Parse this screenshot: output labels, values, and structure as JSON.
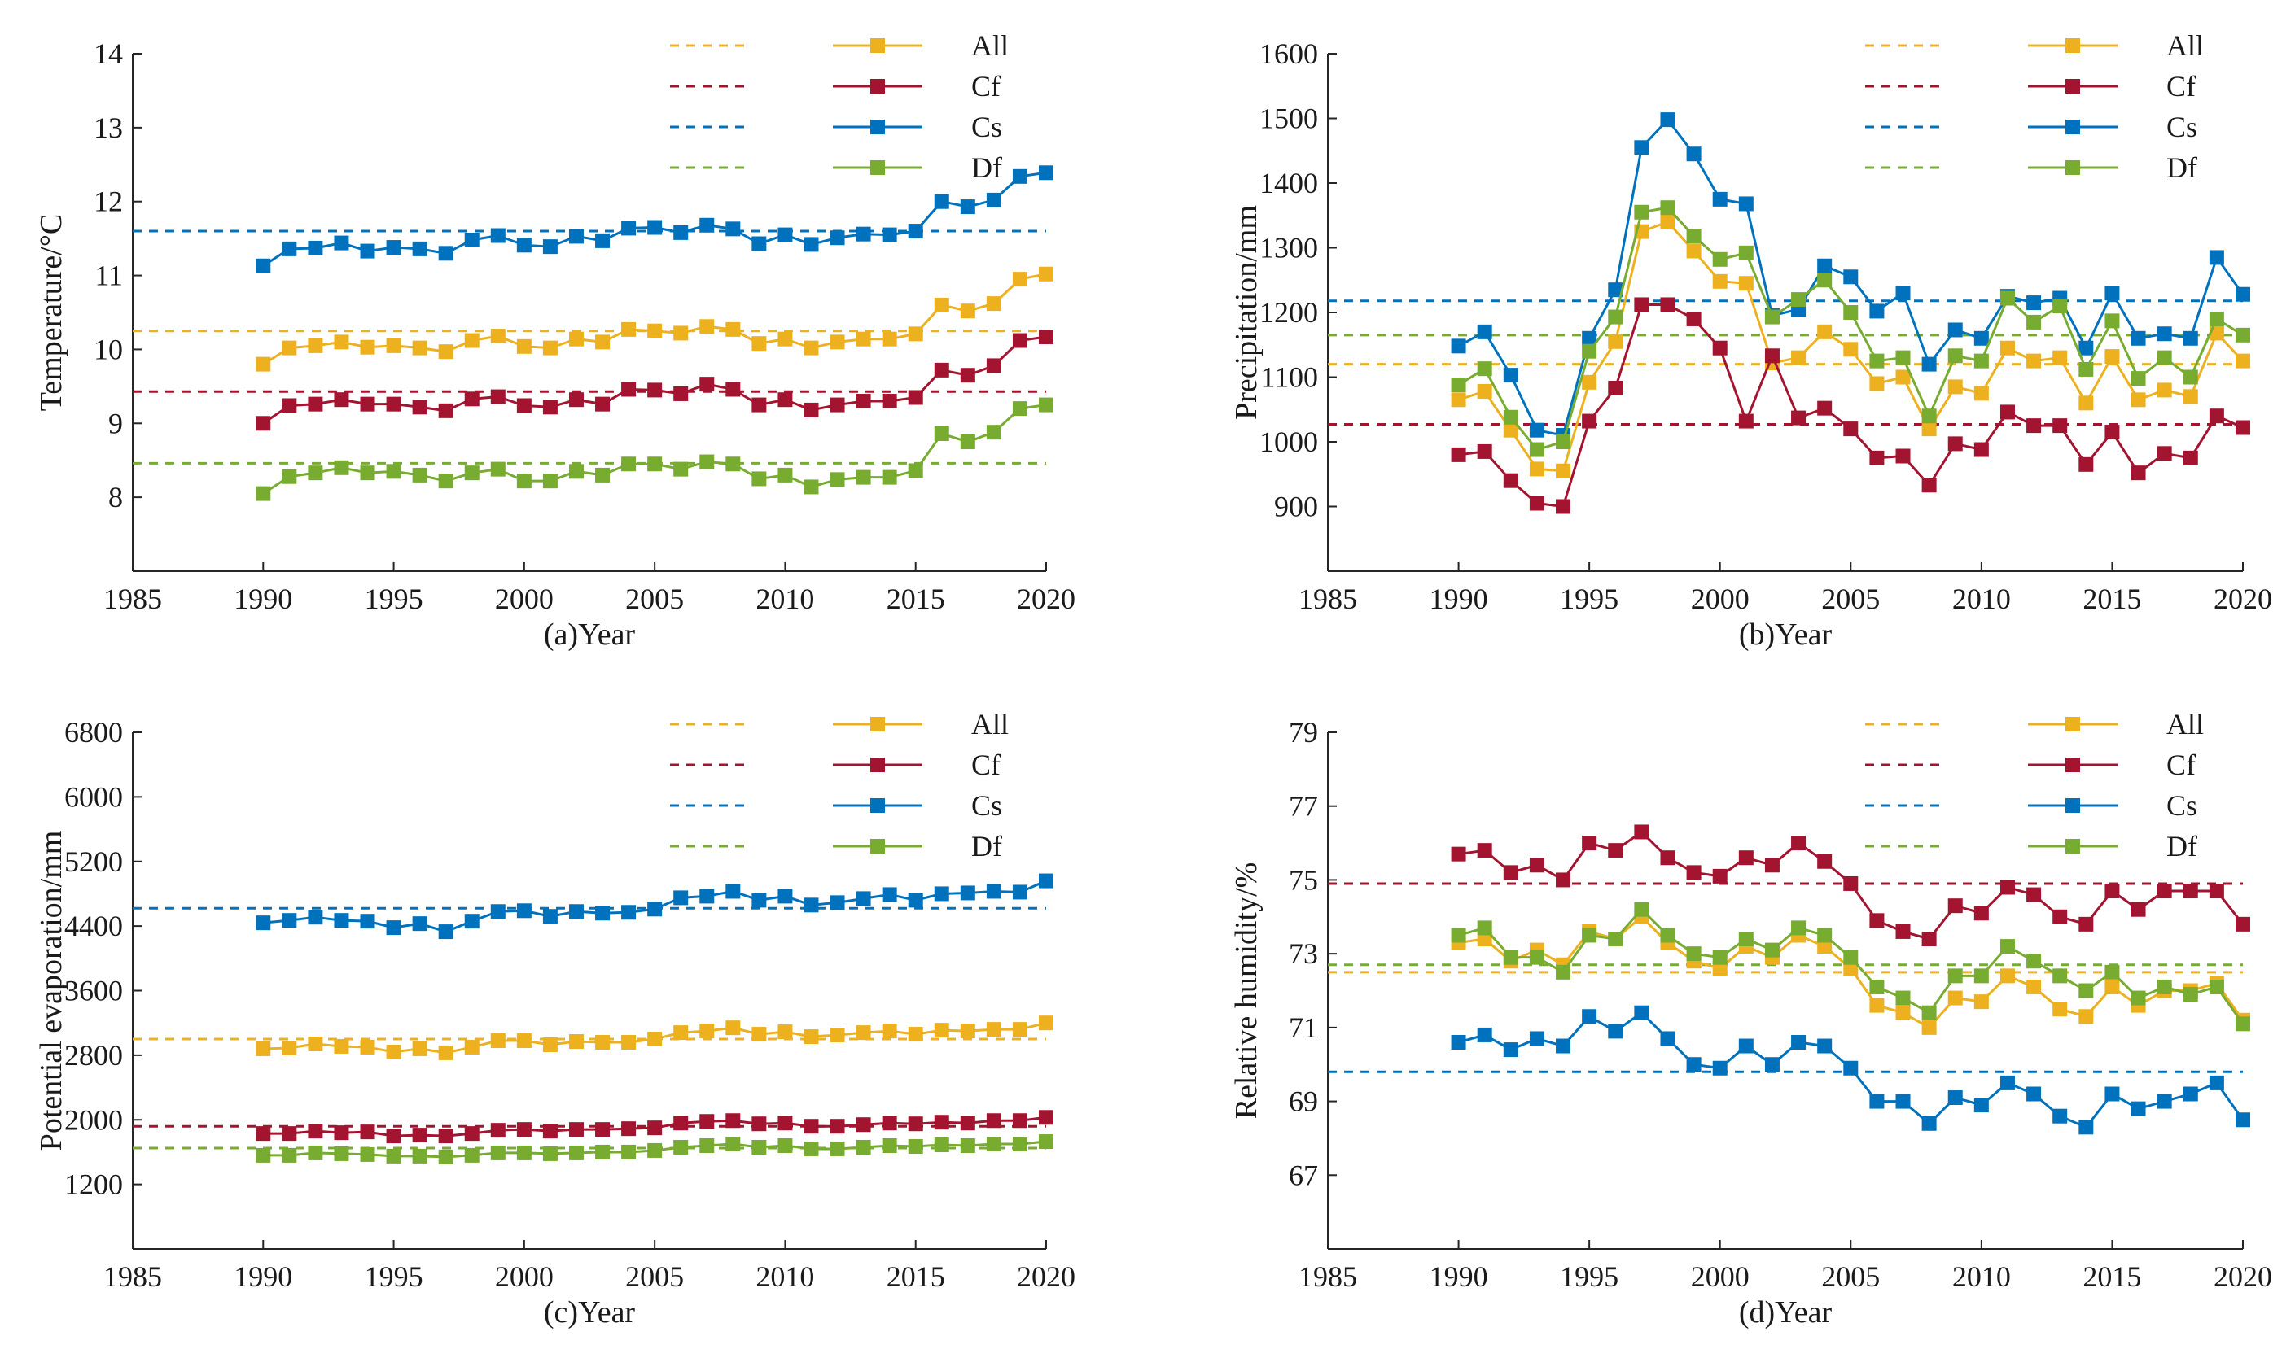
{
  "colors": {
    "All": "#EDB120",
    "Cf": "#A2142F",
    "Cs": "#0072BD",
    "Df": "#77AC30",
    "axis": "#262626"
  },
  "chart_data": [
    {
      "id": "a",
      "type": "line",
      "xlabel": "(a)Year",
      "ylabel": "Temperature/°C",
      "xlim": [
        1985,
        2020
      ],
      "ylim": [
        7,
        14
      ],
      "xticks": [
        "1985",
        "1990",
        "1995",
        "2000",
        "2005",
        "2010",
        "2015",
        "2020"
      ],
      "yticks": [
        "8",
        "9",
        "10",
        "11",
        "12",
        "13",
        "14"
      ],
      "legend": [
        "All",
        "Cf",
        "Cs",
        "Df"
      ],
      "x": [
        1990,
        1991,
        1992,
        1993,
        1994,
        1995,
        1996,
        1997,
        1998,
        1999,
        2000,
        2001,
        2002,
        2003,
        2004,
        2005,
        2006,
        2007,
        2008,
        2009,
        2010,
        2011,
        2012,
        2013,
        2014,
        2015,
        2016,
        2017,
        2018,
        2019,
        2020
      ],
      "series": [
        {
          "name": "All",
          "mean": 10.25,
          "values": [
            9.8,
            10.02,
            10.05,
            10.1,
            10.03,
            10.05,
            10.02,
            9.97,
            10.12,
            10.18,
            10.04,
            10.02,
            10.14,
            10.1,
            10.27,
            10.25,
            10.22,
            10.31,
            10.27,
            10.08,
            10.14,
            10.02,
            10.1,
            10.14,
            10.14,
            10.21,
            10.6,
            10.52,
            10.62,
            10.95,
            11.02
          ]
        },
        {
          "name": "Cf",
          "mean": 9.43,
          "values": [
            9.0,
            9.24,
            9.26,
            9.32,
            9.26,
            9.26,
            9.22,
            9.17,
            9.33,
            9.36,
            9.24,
            9.22,
            9.32,
            9.26,
            9.46,
            9.45,
            9.4,
            9.53,
            9.46,
            9.25,
            9.32,
            9.18,
            9.25,
            9.3,
            9.3,
            9.35,
            9.72,
            9.65,
            9.78,
            10.12,
            10.17
          ]
        },
        {
          "name": "Cs",
          "mean": 11.6,
          "values": [
            11.13,
            11.36,
            11.37,
            11.44,
            11.33,
            11.38,
            11.36,
            11.3,
            11.48,
            11.54,
            11.41,
            11.39,
            11.53,
            11.47,
            11.64,
            11.65,
            11.58,
            11.68,
            11.63,
            11.43,
            11.55,
            11.42,
            11.51,
            11.56,
            11.55,
            11.6,
            12.0,
            11.93,
            12.02,
            12.34,
            12.39
          ]
        },
        {
          "name": "Df",
          "mean": 8.46,
          "values": [
            8.05,
            8.28,
            8.33,
            8.4,
            8.33,
            8.35,
            8.3,
            8.22,
            8.33,
            8.38,
            8.22,
            8.22,
            8.35,
            8.3,
            8.45,
            8.45,
            8.38,
            8.48,
            8.45,
            8.25,
            8.3,
            8.14,
            8.24,
            8.27,
            8.27,
            8.36,
            8.86,
            8.75,
            8.88,
            9.2,
            9.25
          ]
        }
      ]
    },
    {
      "id": "b",
      "type": "line",
      "xlabel": "(b)Year",
      "ylabel": "Precipitation/mm",
      "xlim": [
        1985,
        2020
      ],
      "ylim": [
        800,
        1600
      ],
      "xticks": [
        "1985",
        "1990",
        "1995",
        "2000",
        "2005",
        "2010",
        "2015",
        "2020"
      ],
      "yticks": [
        "900",
        "1000",
        "1100",
        "1200",
        "1300",
        "1400",
        "1500",
        "1600"
      ],
      "legend": [
        "All",
        "Cf",
        "Cs",
        "Df"
      ],
      "x": [
        1990,
        1991,
        1992,
        1993,
        1994,
        1995,
        1996,
        1997,
        1998,
        1999,
        2000,
        2001,
        2002,
        2003,
        2004,
        2005,
        2006,
        2007,
        2008,
        2009,
        2010,
        2011,
        2012,
        2013,
        2014,
        2015,
        2016,
        2017,
        2018,
        2019,
        2020
      ],
      "series": [
        {
          "name": "All",
          "mean": 1120,
          "values": [
            1065,
            1078,
            1018,
            958,
            955,
            1092,
            1155,
            1325,
            1340,
            1295,
            1248,
            1245,
            1122,
            1130,
            1170,
            1143,
            1090,
            1100,
            1020,
            1085,
            1075,
            1145,
            1125,
            1130,
            1060,
            1132,
            1065,
            1080,
            1070,
            1168,
            1125
          ]
        },
        {
          "name": "Cf",
          "mean": 1027,
          "values": [
            980,
            985,
            940,
            905,
            900,
            1032,
            1083,
            1212,
            1212,
            1190,
            1145,
            1032,
            1133,
            1037,
            1052,
            1020,
            975,
            978,
            933,
            997,
            988,
            1046,
            1025,
            1025,
            965,
            1015,
            952,
            982,
            975,
            1040,
            1022
          ]
        },
        {
          "name": "Cs",
          "mean": 1218,
          "values": [
            1148,
            1170,
            1103,
            1018,
            1010,
            1160,
            1235,
            1455,
            1498,
            1445,
            1375,
            1368,
            1195,
            1205,
            1272,
            1255,
            1202,
            1230,
            1120,
            1173,
            1160,
            1225,
            1215,
            1222,
            1145,
            1230,
            1160,
            1167,
            1160,
            1285,
            1228
          ]
        },
        {
          "name": "Df",
          "mean": 1165,
          "values": [
            1088,
            1113,
            1038,
            988,
            1000,
            1140,
            1193,
            1355,
            1362,
            1318,
            1282,
            1292,
            1193,
            1220,
            1250,
            1200,
            1125,
            1130,
            1040,
            1133,
            1125,
            1222,
            1185,
            1210,
            1112,
            1187,
            1098,
            1130,
            1100,
            1190,
            1165
          ]
        }
      ]
    },
    {
      "id": "c",
      "type": "line",
      "xlabel": "(c)Year",
      "ylabel": "Potential evaporation/mm",
      "xlim": [
        1985,
        2020
      ],
      "ylim": [
        400,
        6800
      ],
      "xticks": [
        "1985",
        "1990",
        "1995",
        "2000",
        "2005",
        "2010",
        "2015",
        "2020"
      ],
      "yticks": [
        "1200",
        "2000",
        "2800",
        "3600",
        "4400",
        "5200",
        "6000",
        "6800"
      ],
      "legend": [
        "All",
        "Cf",
        "Cs",
        "Df"
      ],
      "x": [
        1990,
        1991,
        1992,
        1993,
        1994,
        1995,
        1996,
        1997,
        1998,
        1999,
        2000,
        2001,
        2002,
        2003,
        2004,
        2005,
        2006,
        2007,
        2008,
        2009,
        2010,
        2011,
        2012,
        2013,
        2014,
        2015,
        2016,
        2017,
        2018,
        2019,
        2020
      ],
      "series": [
        {
          "name": "All",
          "mean": 3000,
          "values": [
            2880,
            2890,
            2940,
            2910,
            2900,
            2840,
            2880,
            2830,
            2900,
            2980,
            2980,
            2930,
            2970,
            2960,
            2960,
            3000,
            3080,
            3100,
            3140,
            3060,
            3090,
            3030,
            3050,
            3080,
            3100,
            3060,
            3110,
            3100,
            3120,
            3120,
            3200
          ]
        },
        {
          "name": "Cf",
          "mean": 1920,
          "values": [
            1830,
            1830,
            1860,
            1840,
            1850,
            1800,
            1810,
            1800,
            1830,
            1870,
            1880,
            1860,
            1880,
            1880,
            1890,
            1900,
            1960,
            1980,
            1990,
            1950,
            1960,
            1920,
            1920,
            1940,
            1960,
            1950,
            1970,
            1960,
            1990,
            1990,
            2030
          ]
        },
        {
          "name": "Cs",
          "mean": 4620,
          "values": [
            4440,
            4470,
            4510,
            4470,
            4460,
            4380,
            4430,
            4330,
            4460,
            4580,
            4590,
            4520,
            4580,
            4560,
            4570,
            4610,
            4750,
            4770,
            4830,
            4720,
            4770,
            4660,
            4690,
            4740,
            4790,
            4720,
            4800,
            4810,
            4830,
            4820,
            4960
          ]
        },
        {
          "name": "Df",
          "mean": 1650,
          "values": [
            1560,
            1560,
            1590,
            1580,
            1570,
            1550,
            1550,
            1540,
            1560,
            1590,
            1590,
            1580,
            1590,
            1600,
            1600,
            1620,
            1660,
            1680,
            1700,
            1660,
            1680,
            1640,
            1640,
            1660,
            1680,
            1670,
            1690,
            1680,
            1700,
            1700,
            1730
          ]
        }
      ]
    },
    {
      "id": "d",
      "type": "line",
      "xlabel": "(d)Year",
      "ylabel": "Relative humidity/%",
      "xlim": [
        1985,
        2020
      ],
      "ylim": [
        65,
        79
      ],
      "xticks": [
        "1985",
        "1990",
        "1995",
        "2000",
        "2005",
        "2010",
        "2015",
        "2020"
      ],
      "yticks": [
        "67",
        "69",
        "71",
        "73",
        "75",
        "77",
        "79"
      ],
      "legend": [
        "All",
        "Cf",
        "Cs",
        "Df"
      ],
      "x": [
        1990,
        1991,
        1992,
        1993,
        1994,
        1995,
        1996,
        1997,
        1998,
        1999,
        2000,
        2001,
        2002,
        2003,
        2004,
        2005,
        2006,
        2007,
        2008,
        2009,
        2010,
        2011,
        2012,
        2013,
        2014,
        2015,
        2016,
        2017,
        2018,
        2019,
        2020
      ],
      "series": [
        {
          "name": "All",
          "mean": 72.5,
          "values": [
            73.3,
            73.4,
            72.8,
            73.1,
            72.7,
            73.6,
            73.4,
            74.0,
            73.3,
            72.8,
            72.6,
            73.2,
            72.9,
            73.5,
            73.2,
            72.6,
            71.6,
            71.4,
            71.0,
            71.8,
            71.7,
            72.4,
            72.1,
            71.5,
            71.3,
            72.1,
            71.6,
            72.0,
            72.0,
            72.2,
            71.2
          ]
        },
        {
          "name": "Cf",
          "mean": 74.9,
          "values": [
            75.7,
            75.8,
            75.2,
            75.4,
            75.0,
            76.0,
            75.8,
            76.3,
            75.6,
            75.2,
            75.1,
            75.6,
            75.4,
            76.0,
            75.5,
            74.9,
            73.9,
            73.6,
            73.4,
            74.3,
            74.1,
            74.8,
            74.6,
            74.0,
            73.8,
            74.7,
            74.2,
            74.7,
            74.7,
            74.7,
            73.8
          ]
        },
        {
          "name": "Cs",
          "mean": 69.8,
          "values": [
            70.6,
            70.8,
            70.4,
            70.7,
            70.5,
            71.3,
            70.9,
            71.4,
            70.7,
            70.0,
            69.9,
            70.5,
            70.0,
            70.6,
            70.5,
            69.9,
            69.0,
            69.0,
            68.4,
            69.1,
            68.9,
            69.5,
            69.2,
            68.6,
            68.3,
            69.2,
            68.8,
            69.0,
            69.2,
            69.5,
            68.5
          ]
        },
        {
          "name": "Df",
          "mean": 72.7,
          "values": [
            73.5,
            73.7,
            72.9,
            72.9,
            72.5,
            73.5,
            73.4,
            74.2,
            73.5,
            73.0,
            72.9,
            73.4,
            73.1,
            73.7,
            73.5,
            72.9,
            72.1,
            71.8,
            71.4,
            72.4,
            72.4,
            73.2,
            72.8,
            72.4,
            72.0,
            72.5,
            71.8,
            72.1,
            71.9,
            72.1,
            71.1
          ]
        }
      ]
    }
  ]
}
